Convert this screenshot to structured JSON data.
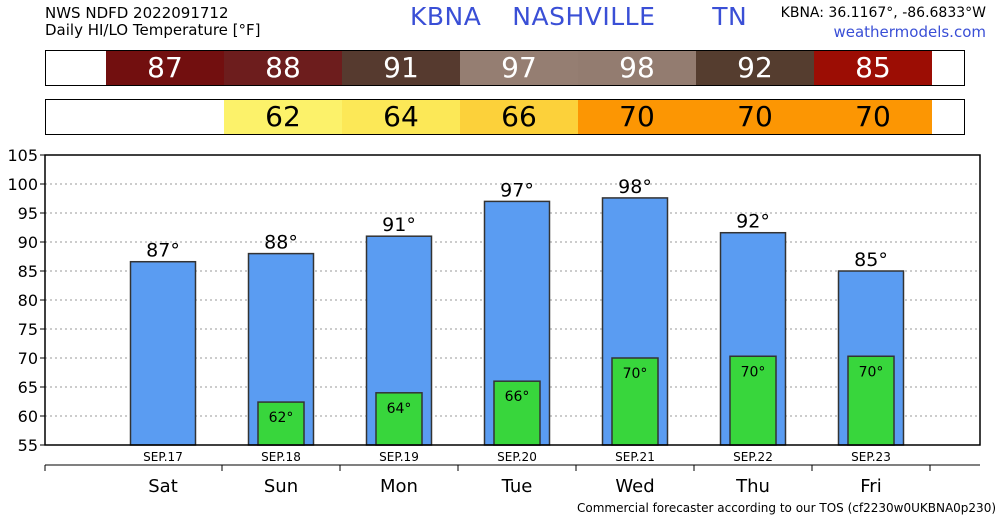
{
  "header": {
    "line1": "NWS NDFD 2022091712",
    "line2": "Daily HI/LO Temperature [°F]",
    "station_id": "KBNA",
    "city": "NASHVILLE",
    "state": "TN",
    "coords": "KBNA: 36.1167°, -86.6833°W",
    "website": "weathermodels.com"
  },
  "footer": "Commercial forecaster according to our TOS (cf2230w0UKBNA0p230)",
  "hi_strip": [
    {
      "value": "87",
      "color": "#720f0f",
      "text_color": "#ffffff"
    },
    {
      "value": "88",
      "color": "#6d1d1d",
      "text_color": "#ffffff"
    },
    {
      "value": "91",
      "color": "#563a2f",
      "text_color": "#ffffff"
    },
    {
      "value": "97",
      "color": "#957e72",
      "text_color": "#ffffff"
    },
    {
      "value": "98",
      "color": "#937c70",
      "text_color": "#ffffff"
    },
    {
      "value": "92",
      "color": "#553d2f",
      "text_color": "#ffffff"
    },
    {
      "value": "85",
      "color": "#9c0d04",
      "text_color": "#ffffff"
    }
  ],
  "lo_strip": [
    {
      "value": "",
      "color": "#ffffff",
      "text_color": "#000000"
    },
    {
      "value": "62",
      "color": "#fcf26a",
      "text_color": "#000000"
    },
    {
      "value": "64",
      "color": "#fce857",
      "text_color": "#000000"
    },
    {
      "value": "66",
      "color": "#fcd13a",
      "text_color": "#000000"
    },
    {
      "value": "70",
      "color": "#fc9603",
      "text_color": "#000000"
    },
    {
      "value": "70",
      "color": "#fc9603",
      "text_color": "#000000"
    },
    {
      "value": "70",
      "color": "#fc9603",
      "text_color": "#000000"
    }
  ],
  "chart_data": {
    "type": "bar",
    "categories": [
      "Sat",
      "Sun",
      "Mon",
      "Tue",
      "Wed",
      "Thu",
      "Fri"
    ],
    "dates": [
      "SEP.17",
      "SEP.18",
      "SEP.19",
      "SEP.20",
      "SEP.21",
      "SEP.22",
      "SEP.23"
    ],
    "series": [
      {
        "values": [
          86.6,
          88.0,
          91.0,
          97.0,
          97.6,
          91.6,
          85.0
        ],
        "labels": [
          "87°",
          "88°",
          "91°",
          "97°",
          "98°",
          "92°",
          "85°"
        ],
        "color": "#5a9cf2"
      },
      {
        "values": [
          null,
          62.4,
          64.0,
          66.0,
          70.0,
          70.3,
          70.3
        ],
        "labels": [
          "",
          "62°",
          "64°",
          "66°",
          "70°",
          "70°",
          "70°"
        ],
        "color": "#38d63c"
      }
    ],
    "ylim": [
      55,
      105
    ],
    "yticks": [
      55,
      60,
      65,
      70,
      75,
      80,
      85,
      90,
      95,
      100,
      105
    ],
    "grid": true
  }
}
